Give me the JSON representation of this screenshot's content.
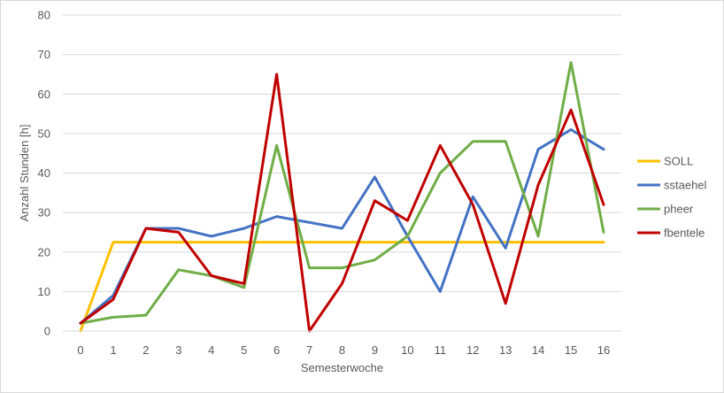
{
  "chart_data": {
    "type": "line",
    "title": "",
    "xlabel": "Semesterwoche",
    "ylabel": "Anzahl Stunden [h]",
    "x": [
      0,
      1,
      2,
      3,
      4,
      5,
      6,
      7,
      8,
      9,
      10,
      11,
      12,
      13,
      14,
      15,
      16
    ],
    "ylim": [
      0,
      80
    ],
    "yticks": [
      0,
      10,
      20,
      30,
      40,
      50,
      60,
      70,
      80
    ],
    "grid": true,
    "legend_position": "right",
    "series": [
      {
        "name": "SOLL",
        "color": "#ffc000",
        "values": [
          0,
          22.5,
          22.5,
          22.5,
          22.5,
          22.5,
          22.5,
          22.5,
          22.5,
          22.5,
          22.5,
          22.5,
          22.5,
          22.5,
          22.5,
          22.5,
          22.5
        ]
      },
      {
        "name": "sstaehel",
        "color": "#4472c4",
        "values": [
          2,
          9,
          26,
          26,
          24,
          26,
          29,
          27.5,
          26,
          39,
          24,
          10,
          34,
          21,
          46,
          51,
          46
        ]
      },
      {
        "name": "pheer",
        "color": "#70ad47",
        "values": [
          2,
          3.5,
          4,
          15.5,
          14,
          11,
          47,
          16,
          16,
          18,
          24,
          40,
          48,
          48,
          24,
          68,
          25
        ]
      },
      {
        "name": "fbentele",
        "color": "#c00000",
        "values": [
          2,
          8,
          26,
          25,
          14,
          12,
          65,
          0,
          12,
          33,
          28,
          47,
          32,
          7,
          37,
          56,
          32
        ]
      }
    ]
  }
}
